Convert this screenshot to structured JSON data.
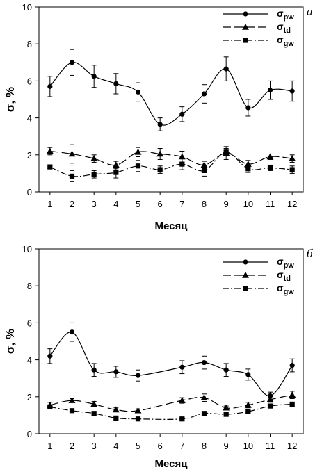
{
  "chart_data": [
    {
      "type": "line",
      "panel_label": "а",
      "xlabel": "Месяц",
      "ylabel": "σ, %",
      "ylim": [
        0,
        10
      ],
      "yticks": [
        0,
        2,
        4,
        6,
        8,
        10
      ],
      "x": [
        1,
        2,
        3,
        4,
        5,
        6,
        7,
        8,
        9,
        10,
        11,
        12
      ],
      "grid": false,
      "legend_placement": "top-right",
      "series": [
        {
          "name": "σpw",
          "name_base": "σ",
          "name_sub": "pw",
          "marker": "circle",
          "line": "solid",
          "values": [
            5.7,
            7.0,
            6.25,
            5.85,
            5.4,
            3.65,
            4.2,
            5.3,
            6.65,
            4.55,
            5.5,
            5.45
          ],
          "error": [
            0.55,
            0.7,
            0.6,
            0.55,
            0.5,
            0.35,
            0.4,
            0.5,
            0.65,
            0.45,
            0.5,
            0.55
          ]
        },
        {
          "name": "σtd",
          "name_base": "σ",
          "name_sub": "td",
          "marker": "triangle",
          "line": "dash",
          "values": [
            2.2,
            2.05,
            1.8,
            1.45,
            2.15,
            2.05,
            1.9,
            1.45,
            2.1,
            1.5,
            1.9,
            1.8
          ],
          "error": [
            0.2,
            0.5,
            0.2,
            0.2,
            0.25,
            0.3,
            0.3,
            0.2,
            0.35,
            0.2,
            0.15,
            0.2
          ]
        },
        {
          "name": "σgw",
          "name_base": "σ",
          "name_sub": "gw",
          "marker": "square",
          "line": "dashdot",
          "values": [
            1.35,
            0.85,
            0.95,
            1.05,
            1.4,
            1.2,
            1.5,
            1.15,
            2.15,
            1.25,
            1.3,
            1.2
          ],
          "error": [
            0.1,
            0.3,
            0.2,
            0.3,
            0.3,
            0.2,
            0.3,
            0.3,
            0.2,
            0.2,
            0.15,
            0.2
          ]
        }
      ]
    },
    {
      "type": "line",
      "panel_label": "б",
      "xlabel": "Месяц",
      "ylabel": "σ, %",
      "ylim": [
        0,
        10
      ],
      "yticks": [
        0,
        2,
        4,
        6,
        8,
        10
      ],
      "x": [
        1,
        2,
        3,
        4,
        5,
        6,
        7,
        8,
        9,
        10,
        11,
        12
      ],
      "grid": false,
      "legend_placement": "top-right",
      "series": [
        {
          "name": "σpw",
          "name_base": "σ",
          "name_sub": "pw",
          "marker": "circle",
          "line": "solid",
          "x": [
            1,
            2,
            3,
            4,
            5,
            7,
            8,
            9,
            10,
            11,
            12
          ],
          "values": [
            4.2,
            5.5,
            3.45,
            3.35,
            3.15,
            3.6,
            3.85,
            3.45,
            3.2,
            2.05,
            3.7
          ],
          "error": [
            0.4,
            0.5,
            0.35,
            0.3,
            0.3,
            0.35,
            0.35,
            0.35,
            0.3,
            0.2,
            0.35
          ]
        },
        {
          "name": "σtd",
          "name_base": "σ",
          "name_sub": "td",
          "marker": "triangle",
          "line": "dash",
          "x": [
            1,
            2,
            3,
            4,
            5,
            7,
            8,
            9,
            10,
            11,
            12
          ],
          "values": [
            1.55,
            1.8,
            1.6,
            1.3,
            1.25,
            1.8,
            1.95,
            1.4,
            1.55,
            1.85,
            2.1
          ],
          "error": [
            0.15,
            0.1,
            0.15,
            0.1,
            0.1,
            0.15,
            0.2,
            0.1,
            0.15,
            0.15,
            0.2
          ]
        },
        {
          "name": "σgw",
          "name_base": "σ",
          "name_sub": "gw",
          "marker": "square",
          "line": "dashdot",
          "x": [
            1,
            2,
            3,
            4,
            5,
            7,
            8,
            9,
            10,
            11,
            12
          ],
          "values": [
            1.45,
            1.25,
            1.1,
            0.85,
            0.8,
            0.8,
            1.1,
            1.05,
            1.2,
            1.5,
            1.6
          ],
          "error": [
            0.1,
            0.08,
            0.08,
            0.08,
            0.08,
            0.08,
            0.08,
            0.08,
            0.08,
            0.1,
            0.1
          ]
        }
      ]
    }
  ]
}
